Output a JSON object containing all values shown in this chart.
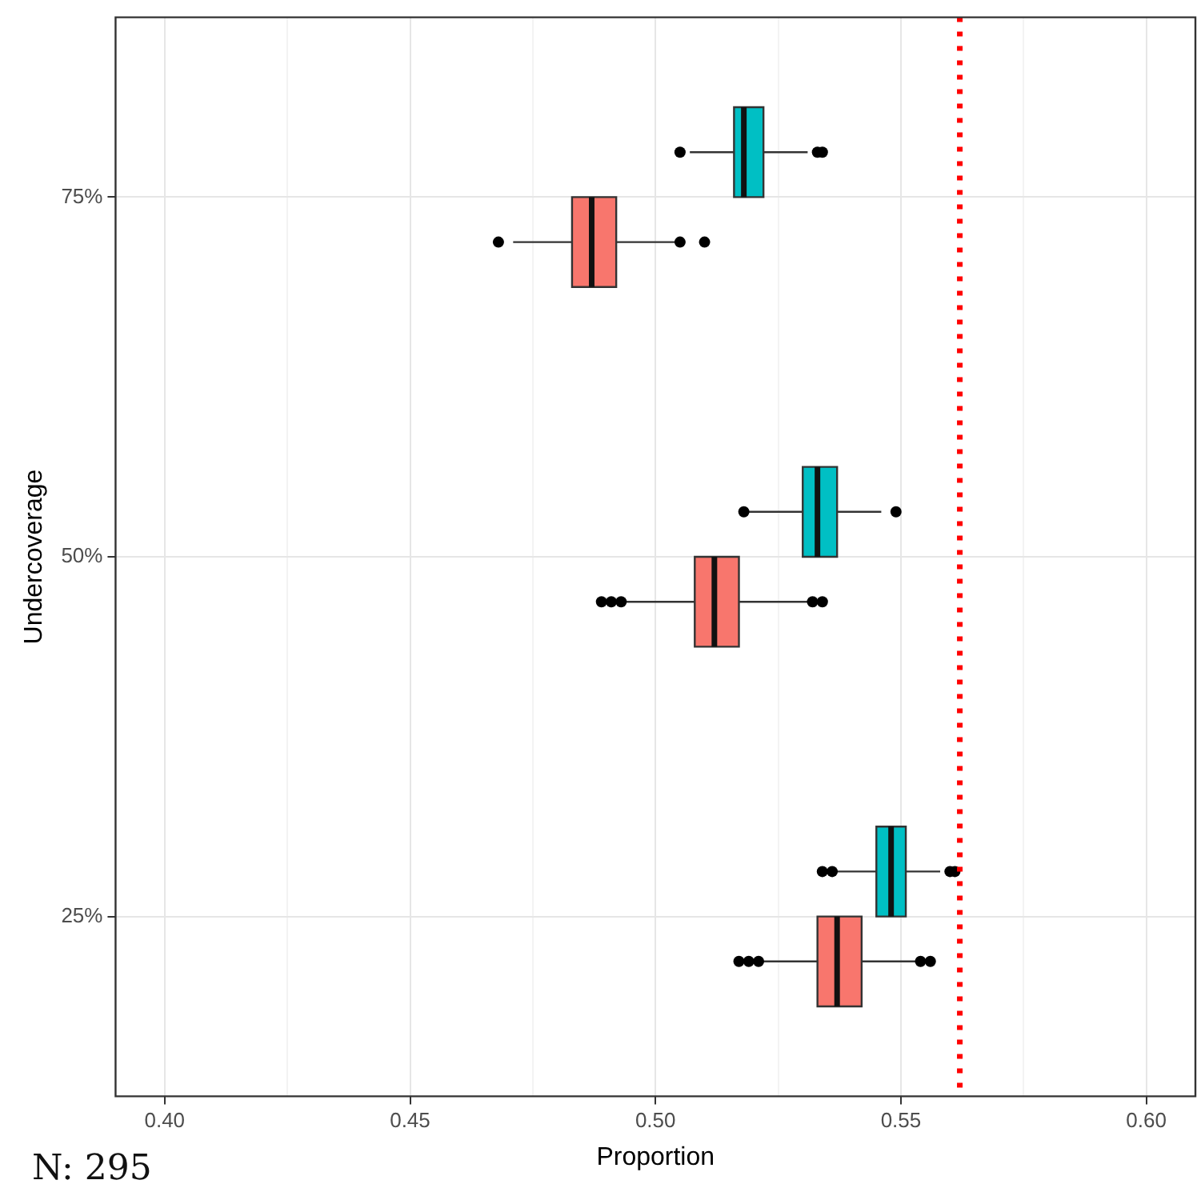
{
  "chart_data": {
    "type": "box",
    "orientation": "horizontal",
    "xlabel": "Proportion",
    "ylabel": "Undercoverage",
    "categories": [
      "75%",
      "50%",
      "25%"
    ],
    "series": [
      {
        "color": "#00bfc4",
        "boxes": [
          {
            "low": 0.507,
            "q1": 0.516,
            "median": 0.518,
            "q3": 0.522,
            "high": 0.531,
            "outliers": [
              0.505,
              0.533,
              0.534
            ]
          },
          {
            "low": 0.519,
            "q1": 0.53,
            "median": 0.533,
            "q3": 0.537,
            "high": 0.546,
            "outliers": [
              0.518,
              0.549
            ]
          },
          {
            "low": 0.537,
            "q1": 0.545,
            "median": 0.548,
            "q3": 0.551,
            "high": 0.558,
            "outliers": [
              0.534,
              0.536,
              0.56,
              0.561
            ]
          }
        ]
      },
      {
        "color": "#f8766d",
        "boxes": [
          {
            "low": 0.471,
            "q1": 0.483,
            "median": 0.487,
            "q3": 0.492,
            "high": 0.504,
            "outliers": [
              0.468,
              0.505,
              0.51
            ]
          },
          {
            "low": 0.494,
            "q1": 0.508,
            "median": 0.512,
            "q3": 0.517,
            "high": 0.531,
            "outliers": [
              0.489,
              0.491,
              0.493,
              0.532,
              0.534
            ]
          },
          {
            "low": 0.522,
            "q1": 0.533,
            "median": 0.537,
            "q3": 0.542,
            "high": 0.553,
            "outliers": [
              0.517,
              0.519,
              0.521,
              0.554,
              0.556
            ]
          }
        ]
      }
    ],
    "xlim": [
      0.39,
      0.61
    ],
    "xticks": [
      {
        "value": 0.4,
        "label": "0.40"
      },
      {
        "value": 0.425,
        "label": null
      },
      {
        "value": 0.45,
        "label": "0.45"
      },
      {
        "value": 0.475,
        "label": null
      },
      {
        "value": 0.5,
        "label": "0.50"
      },
      {
        "value": 0.525,
        "label": null
      },
      {
        "value": 0.55,
        "label": "0.55"
      },
      {
        "value": 0.575,
        "label": null
      },
      {
        "value": 0.6,
        "label": "0.60"
      }
    ],
    "ref_lines": [
      {
        "axis": "x",
        "value": 0.562,
        "color": "#ff0000",
        "line_style": "dotted"
      }
    ],
    "grid": true,
    "annotations": [
      "N: 295"
    ]
  }
}
